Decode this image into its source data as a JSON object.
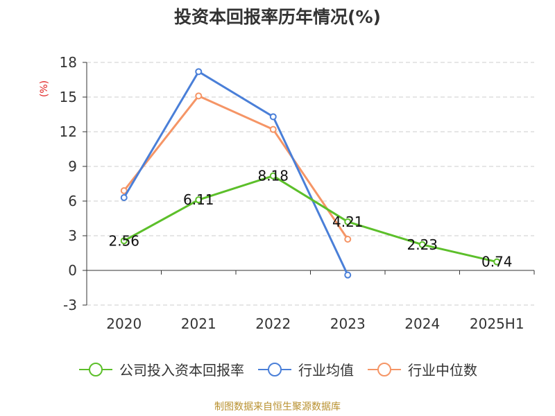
{
  "title": "投资本回报率历年情况(%)",
  "source": "制图数据来自恒生聚源数据库",
  "chart_data": {
    "type": "line",
    "title": "投资本回报率历年情况(%)",
    "ylabel": "(%)",
    "xlabel": "",
    "categories": [
      "2020",
      "2021",
      "2022",
      "2023",
      "2024",
      "2025H1"
    ],
    "ylim": [
      -3,
      18
    ],
    "yticks": [
      -3,
      0,
      3,
      6,
      9,
      12,
      15,
      18
    ],
    "ytick_labels": [
      "-3",
      "0",
      "3",
      "6",
      "9",
      "12",
      "15",
      "18"
    ],
    "grid": true,
    "legend_position": "bottom",
    "series": [
      {
        "name": "公司投入资本回报率",
        "color": "#5cbf2a",
        "values": [
          2.56,
          6.11,
          8.18,
          4.21,
          2.23,
          0.74
        ],
        "labels": [
          "2.56",
          "6.11",
          "8.18",
          "4.21",
          "2.23",
          "0.74"
        ]
      },
      {
        "name": "行业均值",
        "color": "#4a7fd8",
        "values": [
          6.3,
          17.2,
          13.3,
          -0.4,
          null,
          null
        ],
        "labels": []
      },
      {
        "name": "行业中位数",
        "color": "#f59566",
        "values": [
          6.9,
          15.1,
          12.2,
          2.7,
          null,
          null
        ],
        "labels": []
      }
    ]
  }
}
